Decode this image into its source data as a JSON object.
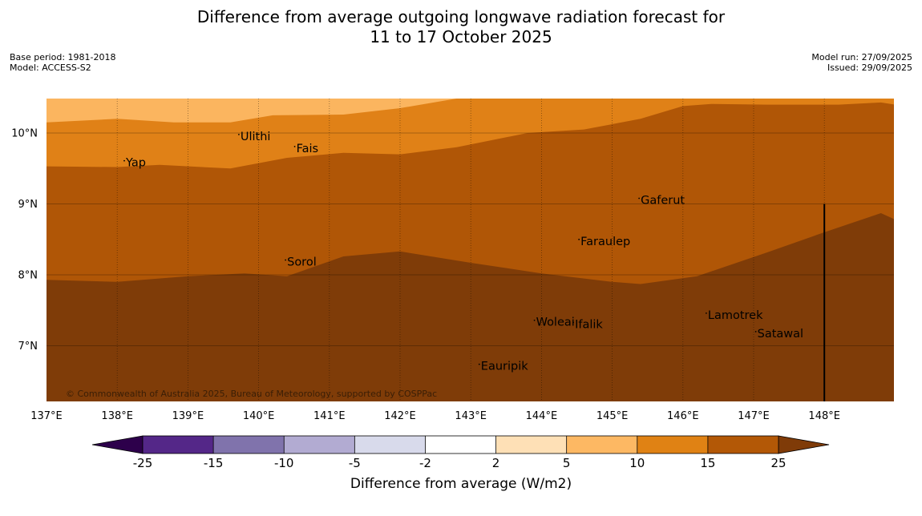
{
  "title": {
    "line1": "Difference from average outgoing longwave radiation forecast for",
    "line2": "11 to 17 October 2025"
  },
  "meta_left": {
    "base_period": "Base period: 1981-2018",
    "model": "Model: ACCESS-S2"
  },
  "meta_right": {
    "model_run": "Model run: 27/09/2025",
    "issued": "Issued: 29/09/2025"
  },
  "copyright": "© Commonwealth of Australia 2025, Bureau of Meteorology, supported by COSPPac",
  "map": {
    "lon_range": [
      137,
      149
    ],
    "lat_range": [
      6.2,
      10.5
    ],
    "lon_ticks": [
      137,
      138,
      139,
      140,
      141,
      142,
      143,
      144,
      145,
      146,
      147,
      148
    ],
    "lon_labels": [
      "137°E",
      "138°E",
      "139°E",
      "140°E",
      "141°E",
      "142°E",
      "143°E",
      "144°E",
      "145°E",
      "146°E",
      "147°E",
      "148°E"
    ],
    "lat_ticks": [
      10,
      9,
      8,
      7
    ],
    "lat_labels": [
      "10°N",
      "9°N",
      "8°N",
      "7°N"
    ],
    "bands": [
      {
        "name": "5 to 10",
        "color": "#fbb55f",
        "boundary": [
          [
            137,
            10.5
          ],
          [
            149,
            10.5
          ]
        ]
      },
      {
        "name": "10 to 15",
        "color": "#e08117",
        "boundary": [
          [
            137,
            10.15
          ],
          [
            138,
            10.2
          ],
          [
            138.8,
            10.15
          ],
          [
            139.6,
            10.15
          ],
          [
            140.2,
            10.25
          ],
          [
            141.2,
            10.26
          ],
          [
            142,
            10.35
          ],
          [
            142.8,
            10.5
          ],
          [
            149,
            10.5
          ]
        ]
      },
      {
        "name": "15 to 25",
        "color": "#b05606",
        "boundary": [
          [
            137,
            9.53
          ],
          [
            138,
            9.52
          ],
          [
            138.6,
            9.55
          ],
          [
            139.6,
            9.5
          ],
          [
            140.4,
            9.65
          ],
          [
            141.2,
            9.72
          ],
          [
            142,
            9.7
          ],
          [
            142.8,
            9.8
          ],
          [
            143.8,
            10
          ],
          [
            144.6,
            10.05
          ],
          [
            145.4,
            10.2
          ],
          [
            146,
            10.38
          ],
          [
            146.4,
            10.41
          ],
          [
            147.2,
            10.4
          ],
          [
            148.2,
            10.4
          ],
          [
            148.8,
            10.43
          ],
          [
            149,
            10.4
          ]
        ]
      },
      {
        "name": "above 25",
        "color": "#7f3c08",
        "boundary": [
          [
            137,
            7.93
          ],
          [
            138,
            7.9
          ],
          [
            139,
            7.98
          ],
          [
            139.8,
            8.02
          ],
          [
            140.4,
            7.98
          ],
          [
            141.2,
            8.26
          ],
          [
            142,
            8.33
          ],
          [
            143,
            8.17
          ],
          [
            144,
            8.02
          ],
          [
            145,
            7.9
          ],
          [
            145.4,
            7.87
          ],
          [
            146.2,
            7.98
          ],
          [
            147.2,
            8.32
          ],
          [
            148,
            8.6
          ],
          [
            148.8,
            8.87
          ],
          [
            149,
            8.78
          ]
        ]
      }
    ],
    "places": [
      {
        "name": "Yap",
        "lon": 138.1,
        "lat": 9.53
      },
      {
        "name": "Ulithi",
        "lon": 139.72,
        "lat": 9.9
      },
      {
        "name": "Fais",
        "lon": 140.51,
        "lat": 9.73
      },
      {
        "name": "Gaferut",
        "lon": 145.38,
        "lat": 9.0
      },
      {
        "name": "Faraulep",
        "lon": 144.53,
        "lat": 8.42
      },
      {
        "name": "Sorol",
        "lon": 140.38,
        "lat": 8.13
      },
      {
        "name": "Lamotrek",
        "lon": 146.33,
        "lat": 7.38
      },
      {
        "name": "Woleai",
        "lon": 143.9,
        "lat": 7.28
      },
      {
        "name": "Ifalik",
        "lon": 144.45,
        "lat": 7.25
      },
      {
        "name": "Satawal",
        "lon": 147.03,
        "lat": 7.12
      },
      {
        "name": "Eauripik",
        "lon": 143.12,
        "lat": 6.66
      }
    ],
    "boundary_line": {
      "lon": 148,
      "lat_top": 9,
      "lat_bottom": 6.2
    }
  },
  "colorbar": {
    "label": "Difference from average (W/m2)",
    "ticks": [
      "-25",
      "-15",
      "-10",
      "-5",
      "-2",
      "2",
      "5",
      "10",
      "15",
      "25"
    ],
    "colors": [
      "#542788",
      "#8073ac",
      "#b2abd2",
      "#d8daeb",
      "#ffffff",
      "#fee0b6",
      "#fdb863",
      "#e08214",
      "#b35806"
    ],
    "under_color": "#2d004b",
    "over_color": "#7f3b08"
  }
}
